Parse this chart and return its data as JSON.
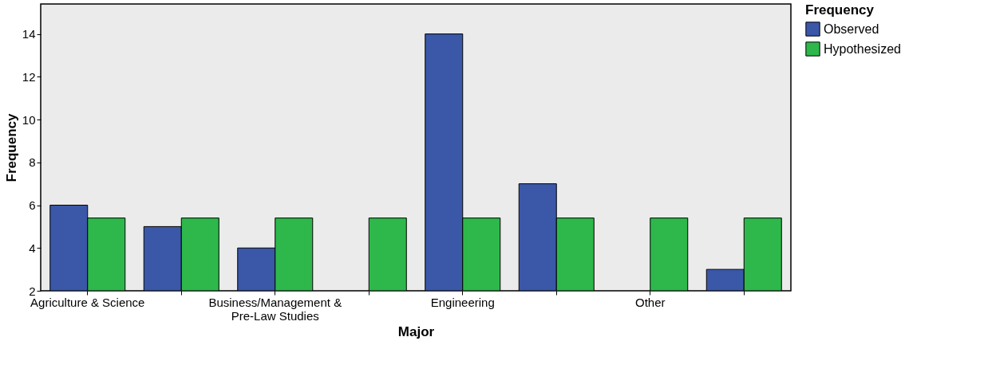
{
  "chart_data": {
    "type": "bar",
    "xlabel": "Major",
    "ylabel": "Frequency",
    "legend_title": "Frequency",
    "categories": [
      "Agriculture & Science",
      null,
      "Business/Management & Pre-Law Studies",
      null,
      "Engineering",
      null,
      "Other",
      null
    ],
    "series": [
      {
        "name": "Observed",
        "color": "#3b57a8",
        "values": [
          6,
          5,
          4,
          null,
          14,
          7,
          null,
          3
        ]
      },
      {
        "name": "Hypothesized",
        "color": "#2eb84b",
        "values": [
          5.4,
          5.4,
          5.4,
          5.4,
          5.4,
          5.4,
          5.4,
          5.4
        ]
      }
    ],
    "ylim": [
      2,
      15.4
    ],
    "yticks": [
      2,
      4,
      6,
      8,
      10,
      12,
      14
    ],
    "grid": false,
    "legend": "top right"
  }
}
